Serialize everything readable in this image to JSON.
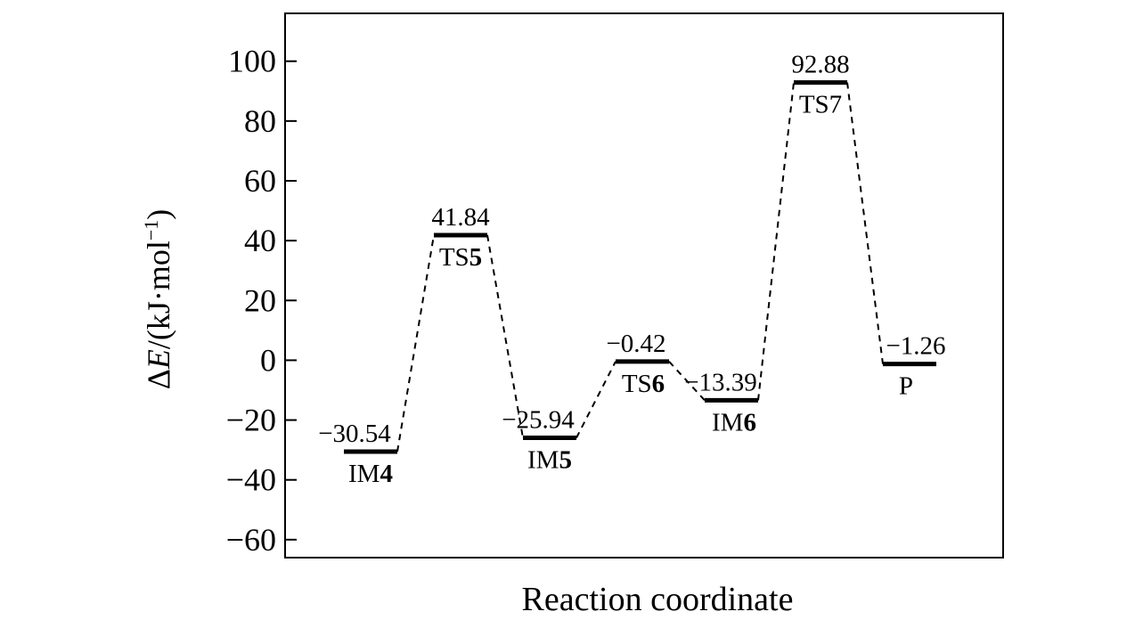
{
  "chart_data": {
    "type": "line",
    "title": "",
    "xlabel": "Reaction coordinate",
    "ylabel": {
      "delta": "Δ",
      "symbol": "E",
      "unit_open": "/(kJ·mol",
      "unit_exp": "−1",
      "unit_close": ")"
    },
    "ylim": [
      -66,
      116
    ],
    "yticks": [
      100,
      80,
      60,
      40,
      20,
      0,
      -20,
      -40,
      -60
    ],
    "ytick_labels": [
      "100",
      "80",
      "60",
      "40",
      "20",
      "0",
      "−20",
      "−40",
      "−60"
    ],
    "grid": false,
    "legend": "none",
    "colors": {
      "line": "#000000",
      "background": "#ffffff"
    },
    "series": [
      {
        "points": [
          {
            "x": 1,
            "y": -30.54,
            "value_label": "−30.54",
            "name": {
              "prefix": "IM",
              "bold": "4"
            }
          },
          {
            "x": 2,
            "y": 41.84,
            "value_label": "41.84",
            "name": {
              "prefix": "TS",
              "bold": "5"
            }
          },
          {
            "x": 3,
            "y": -25.94,
            "value_label": "−25.94",
            "name": {
              "prefix": "IM",
              "bold": "5"
            }
          },
          {
            "x": 4,
            "y": -0.42,
            "value_label": "−0.42",
            "name": {
              "prefix": "TS",
              "bold": "6"
            }
          },
          {
            "x": 5,
            "y": -13.39,
            "value_label": "−13.39",
            "name": {
              "prefix": "IM",
              "bold": "6"
            }
          },
          {
            "x": 6,
            "y": 92.88,
            "value_label": "92.88",
            "name": {
              "prefix": "TS7",
              "bold": ""
            }
          },
          {
            "x": 7,
            "y": -1.26,
            "value_label": "−1.26",
            "name": {
              "prefix": "P",
              "bold": ""
            }
          }
        ]
      }
    ]
  }
}
